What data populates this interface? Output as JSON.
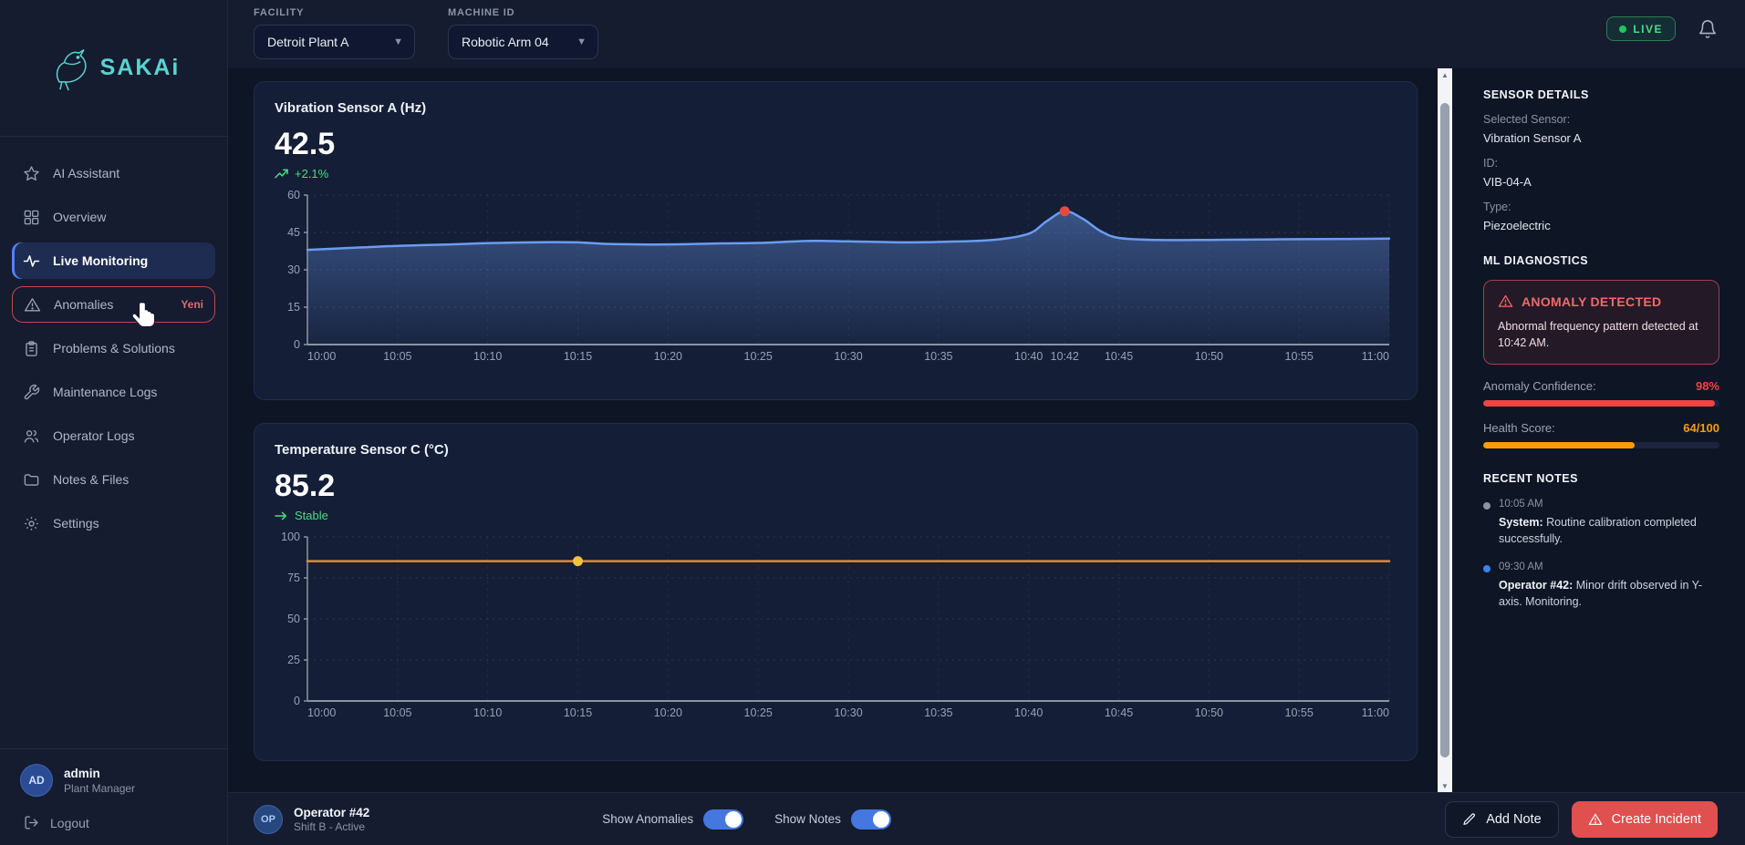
{
  "brand": {
    "name": "SAKAi"
  },
  "topbar": {
    "facility_label": "FACILITY",
    "facility_value": "Detroit Plant A",
    "machine_label": "MACHINE ID",
    "machine_value": "Robotic Arm 04",
    "live_label": "LIVE"
  },
  "sidebar": {
    "items": [
      {
        "label": "AI Assistant"
      },
      {
        "label": "Overview"
      },
      {
        "label": "Live Monitoring",
        "active": true
      },
      {
        "label": "Anomalies",
        "badge": "Yeni"
      },
      {
        "label": "Problems & Solutions"
      },
      {
        "label": "Maintenance Logs"
      },
      {
        "label": "Operator Logs"
      },
      {
        "label": "Notes & Files"
      },
      {
        "label": "Settings"
      }
    ],
    "user": {
      "initials": "AD",
      "name": "admin",
      "role": "Plant Manager"
    },
    "logout_label": "Logout"
  },
  "chart_data": [
    {
      "type": "area",
      "title": "Vibration Sensor A (Hz)",
      "current_value": "42.5",
      "trend": "+2.1%",
      "trend_direction": "up",
      "xlim": [
        0,
        60
      ],
      "ylim": [
        0,
        60
      ],
      "y_ticks": [
        0,
        15,
        30,
        45,
        60
      ],
      "x_tick_pos": [
        0,
        5,
        10,
        15,
        20,
        25,
        30,
        35,
        40,
        42,
        45,
        50,
        55,
        60
      ],
      "x_tick_labels": [
        "10:00",
        "10:05",
        "10:10",
        "10:15",
        "10:20",
        "10:25",
        "10:30",
        "10:35",
        "10:40",
        "10:42",
        "10:45",
        "10:50",
        "10:55",
        "11:00"
      ],
      "line_color": "#6b9cf2",
      "grid": true,
      "series": [
        {
          "name": "Vibration (Hz)",
          "points": [
            [
              0,
              38
            ],
            [
              3,
              39
            ],
            [
              5,
              39.6
            ],
            [
              8,
              40.2
            ],
            [
              10,
              40.7
            ],
            [
              13,
              41.1
            ],
            [
              15,
              41
            ],
            [
              17,
              40.3
            ],
            [
              20,
              40.2
            ],
            [
              23,
              40.6
            ],
            [
              25,
              40.8
            ],
            [
              28,
              41.6
            ],
            [
              30,
              41.4
            ],
            [
              33,
              41
            ],
            [
              35,
              41.2
            ],
            [
              38,
              42
            ],
            [
              40,
              44.5
            ],
            [
              41,
              49.5
            ],
            [
              42,
              53.5
            ],
            [
              43,
              50.5
            ],
            [
              44,
              45.5
            ],
            [
              45,
              42.8
            ],
            [
              47,
              42
            ],
            [
              50,
              42
            ],
            [
              53,
              42.2
            ],
            [
              55,
              42.3
            ],
            [
              58,
              42.4
            ],
            [
              60,
              42.5
            ]
          ]
        }
      ],
      "anomaly_point": {
        "x": 42,
        "y": 53.5,
        "label": "10:42",
        "color": "#e8483f"
      }
    },
    {
      "type": "line",
      "title": "Temperature Sensor C (°C)",
      "current_value": "85.2",
      "trend": "Stable",
      "trend_direction": "flat",
      "xlim": [
        0,
        60
      ],
      "ylim": [
        0,
        100
      ],
      "y_ticks": [
        0,
        25,
        50,
        75,
        100
      ],
      "x_tick_pos": [
        0,
        5,
        10,
        15,
        20,
        25,
        30,
        35,
        40,
        45,
        50,
        55,
        60
      ],
      "x_tick_labels": [
        "10:00",
        "10:05",
        "10:10",
        "10:15",
        "10:20",
        "10:25",
        "10:30",
        "10:35",
        "10:40",
        "10:45",
        "10:50",
        "10:55",
        "11:00"
      ],
      "line_color": "#e8882b",
      "grid": true,
      "series": [
        {
          "name": "Temperature (°C)",
          "points": [
            [
              0,
              85.2
            ],
            [
              60,
              85.2
            ]
          ]
        }
      ],
      "note_point": {
        "x": 15,
        "y": 85.2,
        "label": "10:15",
        "color": "#f0c33c"
      }
    }
  ],
  "sensor_panel": {
    "details_heading": "SENSOR DETAILS",
    "fields": [
      {
        "label": "Selected Sensor:",
        "value": "Vibration Sensor A"
      },
      {
        "label": "ID:",
        "value": "VIB-04-A"
      },
      {
        "label": "Type:",
        "value": "Piezoelectric"
      }
    ],
    "ml_heading": "ML DIAGNOSTICS",
    "anomaly": {
      "title": "ANOMALY DETECTED",
      "message": "Abnormal frequency pattern detected at 10:42 AM."
    },
    "metrics": [
      {
        "label": "Anomaly Confidence:",
        "value": "98%",
        "percent": 98,
        "color": "#ef4444"
      },
      {
        "label": "Health Score:",
        "value": "64/100",
        "percent": 64,
        "color": "#f59e0b"
      }
    ],
    "notes_heading": "RECENT NOTES",
    "notes": [
      {
        "time": "10:05 AM",
        "author": "System:",
        "text": "Routine calibration completed successfully.",
        "dot_color": "#8a93a6"
      },
      {
        "time": "09:30 AM",
        "author": "Operator #42:",
        "text": "Minor drift observed in Y-axis. Monitoring.",
        "dot_color": "#3b82f6"
      }
    ]
  },
  "bottom_bar": {
    "operator": {
      "initials": "OP",
      "name": "Operator #42",
      "status": "Shift B - Active"
    },
    "toggles": [
      {
        "label": "Show Anomalies",
        "on": true
      },
      {
        "label": "Show Notes",
        "on": true
      }
    ],
    "add_note_label": "Add Note",
    "create_incident_label": "Create Incident"
  },
  "colors": {
    "accent_blue": "#3b82f6",
    "green": "#4ade80",
    "red": "#ef4444",
    "orange": "#f59e0b",
    "live_green": "#22c55e",
    "incident_red": "#e0504e",
    "brand_teal": "#5bd3cf"
  }
}
